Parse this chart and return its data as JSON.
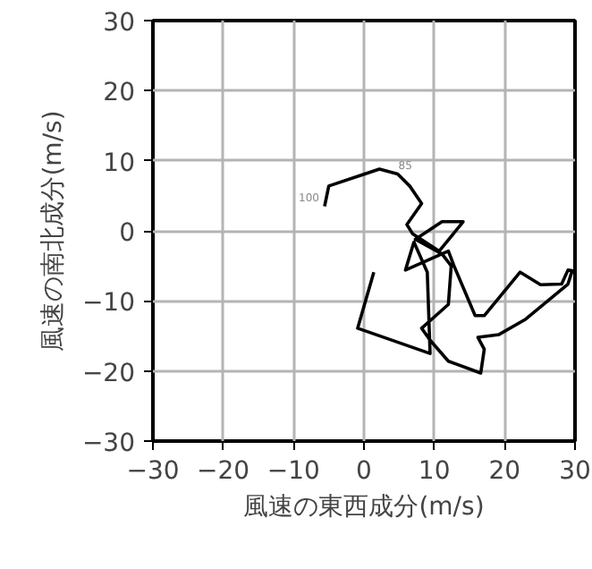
{
  "chart_data": {
    "type": "line",
    "xlabel": "風速の東西成分(m/s)",
    "ylabel": "風速の南北成分(m/s)",
    "x": [
      1.4,
      -0.9,
      9.4,
      9.0,
      7.1,
      5.9,
      12.0,
      12.8,
      15.8,
      17.1,
      22.2,
      25.1,
      28.1,
      29.0,
      29.6,
      29.0,
      23.0,
      19.2,
      16.2,
      17.1,
      16.6,
      12.0,
      9.4,
      8.2,
      12.0,
      12.4,
      11.1,
      7.3,
      11.1,
      14.1,
      10.7,
      6.9,
      6.1,
      8.2,
      6.5,
      4.8,
      2.2,
      0.1,
      -5.0,
      -5.6
    ],
    "series": [
      {
        "color": "#000000",
        "values": [
          -5.9,
          -13.9,
          -17.5,
          -5.9,
          -1.6,
          -5.6,
          -2.9,
          -5.0,
          -12.1,
          -12.1,
          -5.9,
          -7.7,
          -7.6,
          -5.6,
          -5.7,
          -7.6,
          -12.6,
          -14.8,
          -15.2,
          -16.9,
          -20.3,
          -18.6,
          -15.6,
          -13.9,
          -10.5,
          -5.0,
          -3.3,
          -1.2,
          1.3,
          1.3,
          -2.9,
          -0.4,
          0.9,
          3.9,
          6.4,
          8.1,
          8.8,
          8.1,
          6.4,
          3.5
        ]
      }
    ],
    "annotations": [
      {
        "text": "100",
        "x": -5.6,
        "y": 3.5
      },
      {
        "text": "85",
        "x": 4.8,
        "y": 8.1
      }
    ],
    "xlim": [
      -30,
      30
    ],
    "ylim": [
      -30,
      30
    ],
    "xticks": [
      -30,
      -20,
      -10,
      0,
      10,
      20,
      30
    ],
    "yticks": [
      -30,
      -20,
      -10,
      0,
      10,
      20,
      30
    ],
    "grid": true,
    "marker": "none",
    "line_style": "solid"
  }
}
